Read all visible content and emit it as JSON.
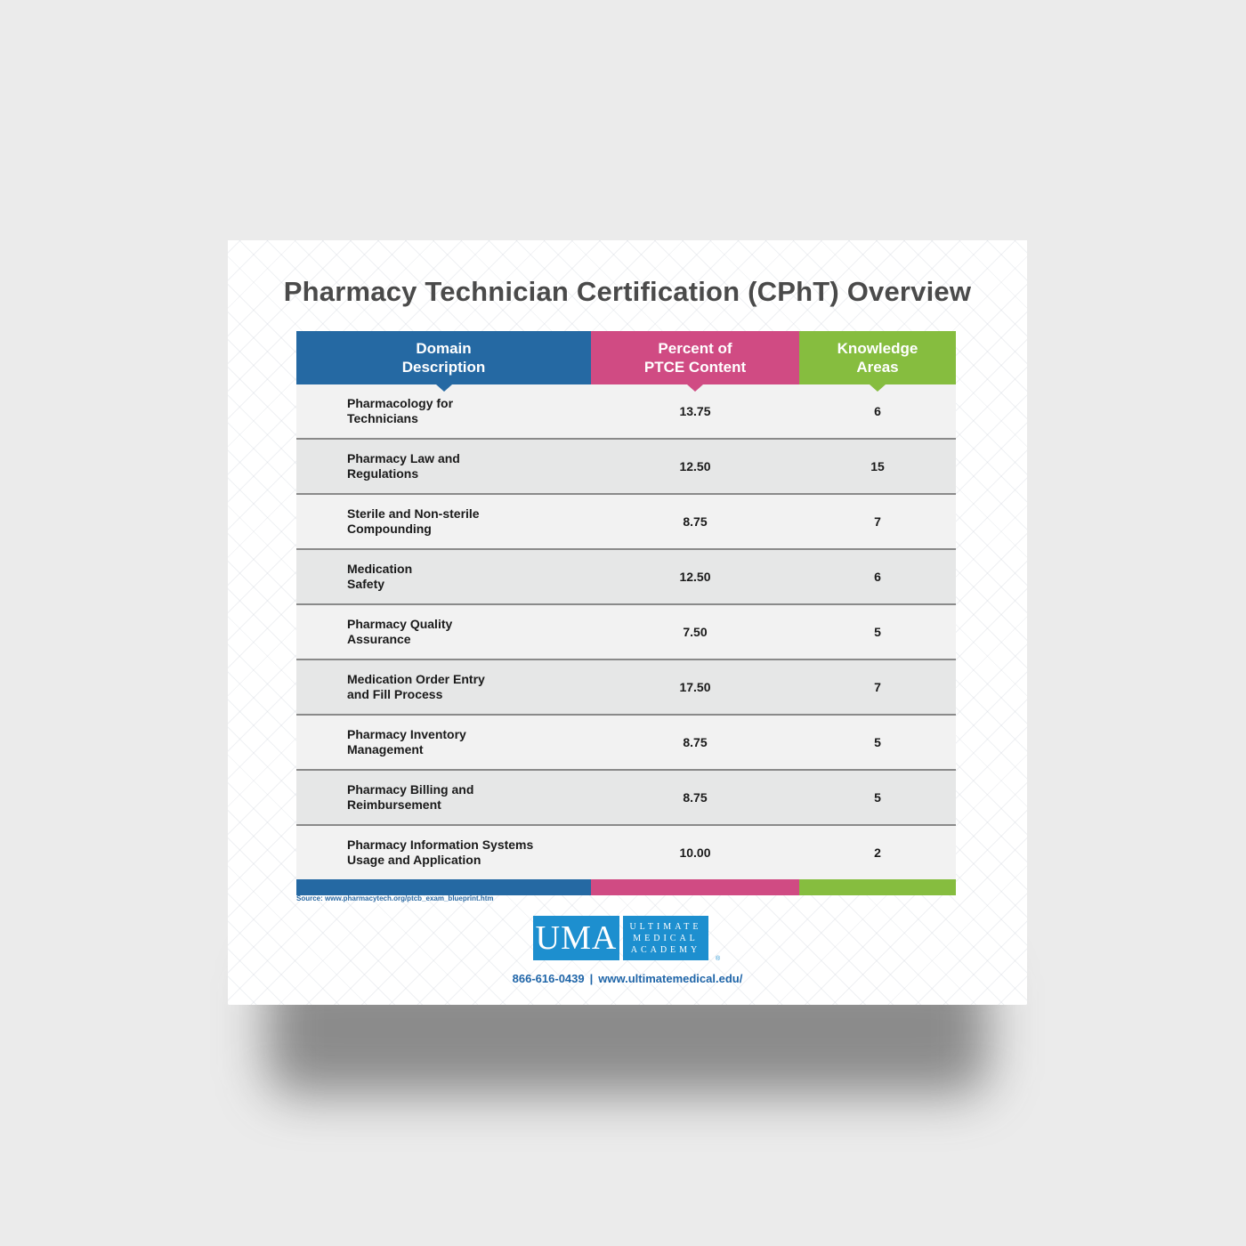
{
  "title": "Pharmacy Technician Certification (CPhT) Overview",
  "colors": {
    "blue": "#2569a3",
    "pink": "#d04b83",
    "green": "#86bd3f",
    "logo_blue": "#1d8fcf"
  },
  "table": {
    "headers": [
      "Domain\nDescription",
      "Percent of\nPTCE Content",
      "Knowledge\nAreas"
    ],
    "rows": [
      {
        "domain": "Pharmacology for\nTechnicians",
        "percent": "13.75",
        "areas": "6"
      },
      {
        "domain": "Pharmacy Law and\nRegulations",
        "percent": "12.50",
        "areas": "15"
      },
      {
        "domain": "Sterile and Non-sterile\nCompounding",
        "percent": "8.75",
        "areas": "7"
      },
      {
        "domain": "Medication\nSafety",
        "percent": "12.50",
        "areas": "6"
      },
      {
        "domain": "Pharmacy Quality\nAssurance",
        "percent": "7.50",
        "areas": "5"
      },
      {
        "domain": "Medication Order Entry\nand Fill Process",
        "percent": "17.50",
        "areas": "7"
      },
      {
        "domain": "Pharmacy Inventory\nManagement",
        "percent": "8.75",
        "areas": "5"
      },
      {
        "domain": "Pharmacy Billing and\nReimbursement",
        "percent": "8.75",
        "areas": "5"
      },
      {
        "domain": "Pharmacy Information Systems\nUsage and Application",
        "percent": "10.00",
        "areas": "2"
      }
    ]
  },
  "source": "Source: www.pharmacytech.org/ptcb_exam_blueprint.htm",
  "logo": {
    "abbr": "UMA",
    "words": [
      "ULTIMATE",
      "MEDICAL",
      "ACADEMY"
    ],
    "registered": "®"
  },
  "contact": {
    "phone": "866-616-0439",
    "separator": "|",
    "website": "www.ultimatemedical.edu/"
  }
}
